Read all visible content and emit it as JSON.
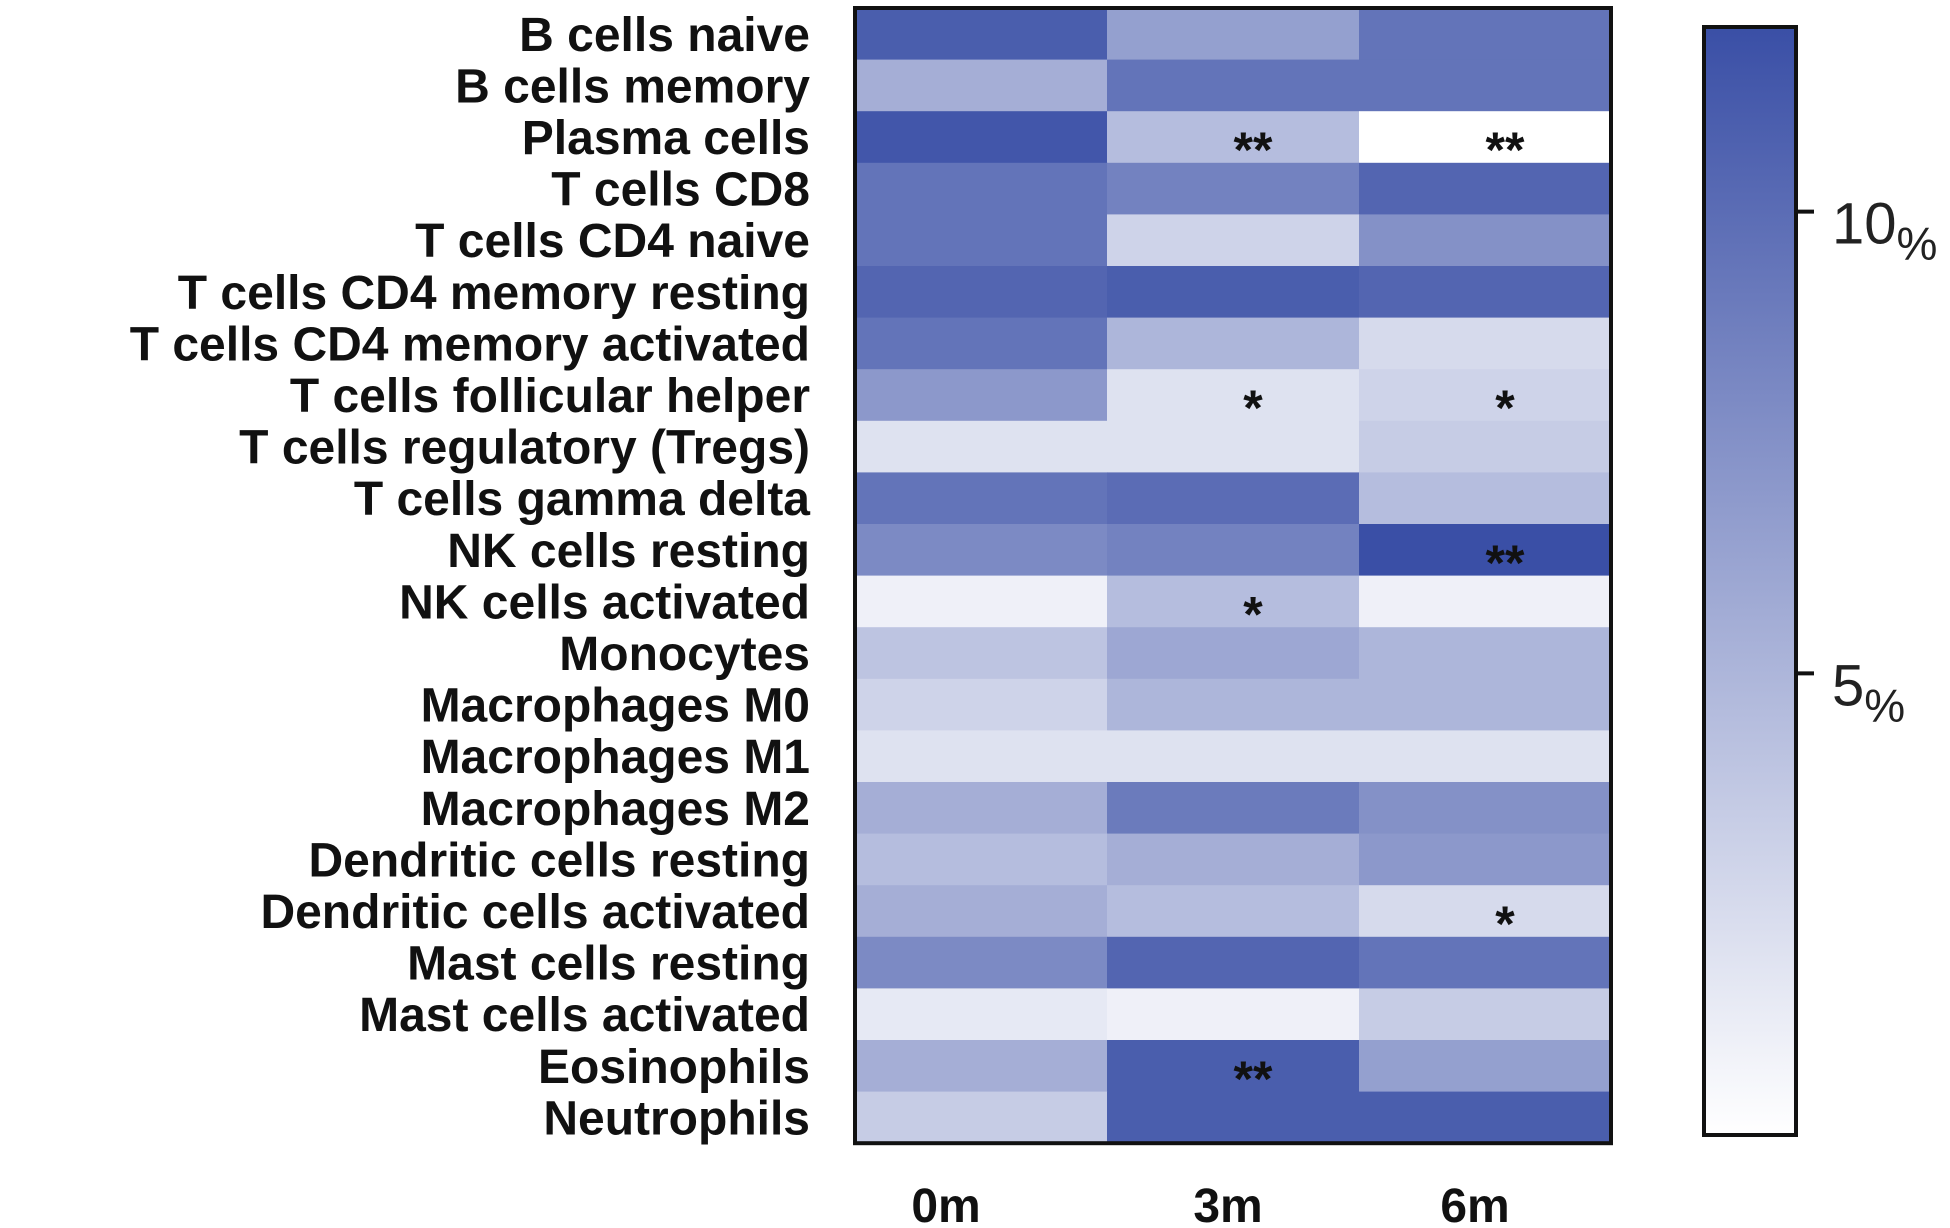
{
  "chart_data": {
    "type": "heatmap",
    "rows": [
      "B cells naive",
      "B cells memory",
      "Plasma cells",
      "T cells CD8",
      "T cells CD4 naive",
      "T cells CD4 memory resting",
      "T cells CD4 memory activated",
      "T cells follicular helper",
      "T cells regulatory (Tregs)",
      "T cells gamma delta",
      "NK cells resting",
      "NK cells activated",
      "Monocytes",
      "Macrophages M0",
      "Macrophages M1",
      "Macrophages M2",
      "Dendritic cells resting",
      "Dendritic cells activated",
      "Mast cells resting",
      "Mast cells activated",
      "Eosinophils",
      "Neutrophils"
    ],
    "columns": [
      "0m",
      "3m",
      "6m"
    ],
    "values": [
      [
        11.0,
        6.5,
        9.5
      ],
      [
        5.5,
        9.5,
        9.5
      ],
      [
        11.5,
        4.5,
        0.0
      ],
      [
        9.5,
        8.5,
        10.5
      ],
      [
        9.5,
        3.0,
        7.5
      ],
      [
        10.5,
        11.0,
        10.5
      ],
      [
        9.5,
        5.0,
        2.5
      ],
      [
        7.0,
        2.0,
        3.0
      ],
      [
        2.0,
        2.0,
        3.5
      ],
      [
        9.5,
        10.0,
        4.5
      ],
      [
        8.0,
        8.5,
        12.0
      ],
      [
        1.0,
        4.5,
        1.0
      ],
      [
        4.0,
        6.0,
        5.0
      ],
      [
        3.0,
        5.0,
        5.0
      ],
      [
        2.0,
        2.0,
        2.0
      ],
      [
        5.5,
        9.0,
        7.5
      ],
      [
        4.5,
        5.5,
        7.0
      ],
      [
        5.5,
        4.5,
        2.5
      ],
      [
        8.0,
        10.5,
        9.5
      ],
      [
        1.5,
        1.0,
        3.5
      ],
      [
        5.5,
        11.0,
        6.5
      ],
      [
        3.5,
        11.0,
        11.0
      ]
    ],
    "significance": [
      {
        "row": 2,
        "col": 1,
        "label": "**"
      },
      {
        "row": 2,
        "col": 2,
        "label": "**"
      },
      {
        "row": 7,
        "col": 1,
        "label": "*"
      },
      {
        "row": 7,
        "col": 2,
        "label": "*"
      },
      {
        "row": 10,
        "col": 2,
        "label": "**"
      },
      {
        "row": 11,
        "col": 1,
        "label": "*"
      },
      {
        "row": 17,
        "col": 2,
        "label": "*"
      },
      {
        "row": 20,
        "col": 1,
        "label": "**"
      }
    ],
    "colorbar": {
      "min": 0,
      "max": 12,
      "ticks": [
        {
          "value": 10,
          "number": "10",
          "unit": "%"
        },
        {
          "value": 5,
          "number": "5",
          "unit": "%"
        }
      ],
      "low_color": "#ffffff",
      "high_color": "#3a4fa6"
    }
  }
}
